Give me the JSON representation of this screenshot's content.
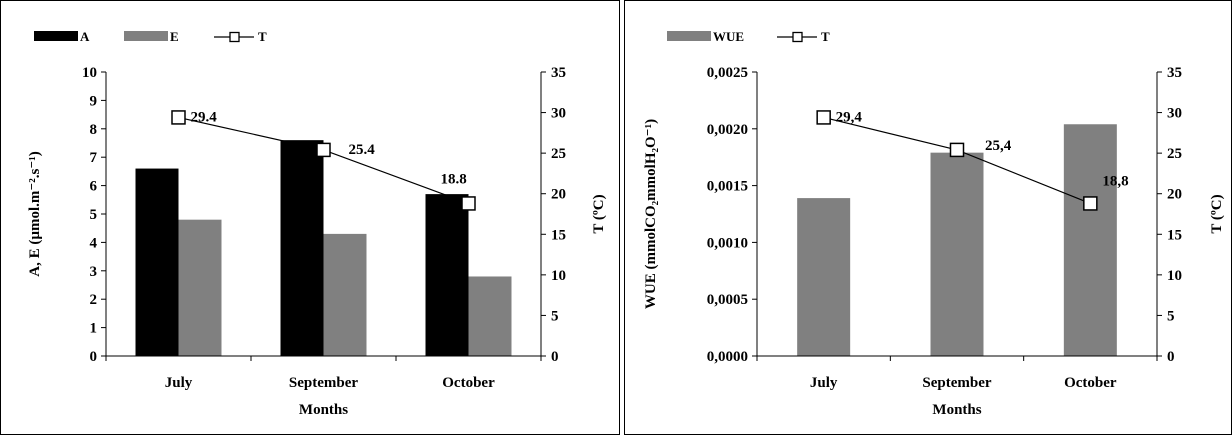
{
  "chart_data": [
    {
      "type": "bar",
      "categories": [
        "July",
        "September",
        "October"
      ],
      "xlabel": "Months",
      "ylabel": "A, E (µmol.m⁻².s⁻¹)",
      "y2label": "T (ºC)",
      "ylim": [
        0,
        10
      ],
      "y2lim": [
        0,
        35
      ],
      "yticks": [
        "0",
        "1",
        "2",
        "3",
        "4",
        "5",
        "6",
        "7",
        "8",
        "9",
        "10"
      ],
      "y2ticks": [
        "0",
        "5",
        "10",
        "15",
        "20",
        "25",
        "30",
        "35"
      ],
      "series": [
        {
          "name": "A",
          "kind": "bar",
          "axis": "left",
          "color": "#000000",
          "values": [
            6.6,
            7.6,
            5.7
          ]
        },
        {
          "name": "E",
          "kind": "bar",
          "axis": "left",
          "color": "#808080",
          "values": [
            4.8,
            4.3,
            2.8
          ]
        },
        {
          "name": "T",
          "kind": "line",
          "axis": "right",
          "marker": "open-square",
          "values": [
            29.4,
            25.4,
            18.8
          ],
          "labels": [
            "29.4",
            "25.4",
            "18.8"
          ]
        }
      ],
      "legend_position": "top-left",
      "grid": false
    },
    {
      "type": "bar",
      "categories": [
        "July",
        "September",
        "October"
      ],
      "xlabel": "Months",
      "ylabel": "WUE (mmolCO₂mmolH₂O⁻¹)",
      "y2label": "T (ºC)",
      "ylim": [
        0,
        0.0025
      ],
      "y2lim": [
        0,
        35
      ],
      "yticks": [
        "0,0000",
        "0,0005",
        "0,0010",
        "0,0015",
        "0,0020",
        "0,0025"
      ],
      "y2ticks": [
        "0",
        "5",
        "10",
        "15",
        "20",
        "25",
        "30",
        "35"
      ],
      "series": [
        {
          "name": "WUE",
          "kind": "bar",
          "axis": "left",
          "color": "#808080",
          "values": [
            0.00139,
            0.00179,
            0.00204
          ]
        },
        {
          "name": "T",
          "kind": "line",
          "axis": "right",
          "marker": "open-square",
          "values": [
            29.4,
            25.4,
            18.8
          ],
          "labels": [
            "29,4",
            "25,4",
            "18,8"
          ]
        }
      ],
      "legend_position": "top-left",
      "grid": false
    }
  ]
}
